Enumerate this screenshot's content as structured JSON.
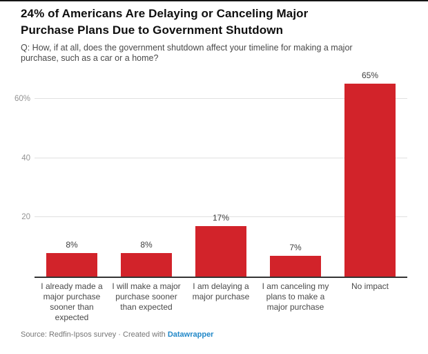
{
  "header": {
    "title": "24% of Americans Are Delaying or Canceling Major Purchase Plans Due to Government Shutdown",
    "subtitle": "Q: How, if at all, does the government shutdown affect your timeline for making a major purchase, such as a car or a home?"
  },
  "chart_data": {
    "type": "bar",
    "title": "24% of Americans Are Delaying or Canceling Major Purchase Plans Due to Government Shutdown",
    "subtitle": "Q: How, if at all, does the government shutdown affect your timeline for making a major purchase, such as a car or a home?",
    "categories": [
      "I already made a major purchase sooner than expected",
      "I will make a major purchase sooner than expected",
      "I am delaying a major purchase",
      "I am canceling my plans to make a major purchase",
      "No impact"
    ],
    "values": [
      8,
      8,
      17,
      7,
      65
    ],
    "value_labels": [
      "8%",
      "8%",
      "17%",
      "7%",
      "65%"
    ],
    "xlabel": "",
    "ylabel": "",
    "ylim": [
      0,
      70
    ],
    "y_ticks": [
      {
        "value": 20,
        "label": "20"
      },
      {
        "value": 40,
        "label": "40"
      },
      {
        "value": 60,
        "label": "60%"
      }
    ],
    "grid": true,
    "legend_position": "none",
    "bar_color": "#d2232a",
    "gridline_color": "#e0e0e0",
    "axis_line_color": "#333333"
  },
  "footer": {
    "source_prefix": "Source:",
    "source": "Redfin-Ipsos survey",
    "separator": "·",
    "created_with": "Created with",
    "tool_link": "Datawrapper"
  },
  "colors": {
    "bar": "#d2232a",
    "link": "#2288c8",
    "subtitle_text": "#494949",
    "tick_text": "#949494",
    "footer_text": "#767676"
  }
}
